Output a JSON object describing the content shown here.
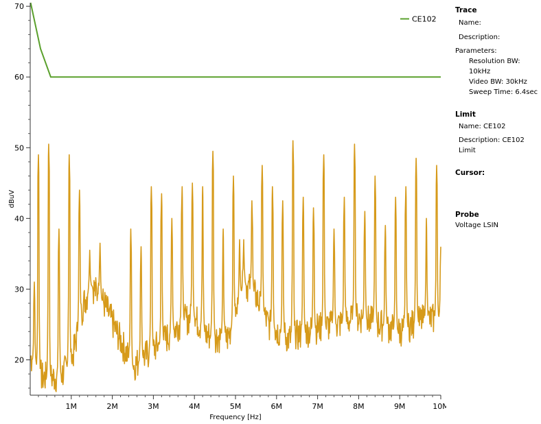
{
  "chart_data": {
    "type": "line",
    "xlabel": "Frequency [Hz]",
    "ylabel": "dBuV",
    "xlim": [
      0,
      10000000
    ],
    "ylim": [
      15,
      70.5
    ],
    "x_ticks": [
      {
        "value": 1000000,
        "label": "1M"
      },
      {
        "value": 2000000,
        "label": "2M"
      },
      {
        "value": 3000000,
        "label": "3M"
      },
      {
        "value": 4000000,
        "label": "4M"
      },
      {
        "value": 5000000,
        "label": "5M"
      },
      {
        "value": 6000000,
        "label": "6M"
      },
      {
        "value": 7000000,
        "label": "7M"
      },
      {
        "value": 8000000,
        "label": "8M"
      },
      {
        "value": 9000000,
        "label": "9M"
      },
      {
        "value": 10000000,
        "label": "10M"
      }
    ],
    "y_ticks": [
      {
        "value": 20,
        "label": "20"
      },
      {
        "value": 30,
        "label": "30"
      },
      {
        "value": 40,
        "label": "40"
      },
      {
        "value": 50,
        "label": "50"
      },
      {
        "value": 60,
        "label": "60"
      },
      {
        "value": 70,
        "label": "70"
      }
    ],
    "grid": false,
    "legend": {
      "placement": "top-right"
    },
    "series": [
      {
        "name": "CE102",
        "color": "#5aa02c",
        "style": "limit",
        "x": [
          10000,
          250000,
          500000,
          10000000
        ],
        "y": [
          70.5,
          64,
          60,
          60
        ]
      },
      {
        "name": "",
        "color": "#d69a1a",
        "style": "trace",
        "baseline": [
          [
            0,
            20.5
          ],
          [
            300000,
            17.5
          ],
          [
            700000,
            17.5
          ],
          [
            1000000,
            19.5
          ],
          [
            1300000,
            28
          ],
          [
            1500000,
            30.5
          ],
          [
            1800000,
            28
          ],
          [
            2100000,
            24
          ],
          [
            2500000,
            19
          ],
          [
            3000000,
            21.5
          ],
          [
            3400000,
            23.5
          ],
          [
            3700000,
            25.5
          ],
          [
            4000000,
            26
          ],
          [
            4300000,
            23.5
          ],
          [
            4800000,
            23
          ],
          [
            5000000,
            26
          ],
          [
            5200000,
            31
          ],
          [
            5500000,
            29
          ],
          [
            5800000,
            25
          ],
          [
            6300000,
            23
          ],
          [
            7000000,
            24.5
          ],
          [
            7500000,
            25
          ],
          [
            8000000,
            26
          ],
          [
            8500000,
            25
          ],
          [
            9000000,
            24
          ],
          [
            9500000,
            25.5
          ],
          [
            10000000,
            26
          ]
        ],
        "peaks": [
          [
            100000,
            31
          ],
          [
            200000,
            49
          ],
          [
            450000,
            50.5
          ],
          [
            700000,
            38.5
          ],
          [
            950000,
            49
          ],
          [
            1200000,
            44
          ],
          [
            1450000,
            35.5
          ],
          [
            1700000,
            36.5
          ],
          [
            2450000,
            38.5
          ],
          [
            2700000,
            36
          ],
          [
            2950000,
            44.5
          ],
          [
            3200000,
            43.5
          ],
          [
            3450000,
            40
          ],
          [
            3700000,
            44.5
          ],
          [
            3950000,
            45
          ],
          [
            4200000,
            44.5
          ],
          [
            4450000,
            49.5
          ],
          [
            4700000,
            38.5
          ],
          [
            4950000,
            46
          ],
          [
            5100000,
            37
          ],
          [
            5200000,
            37
          ],
          [
            5400000,
            42.5
          ],
          [
            5650000,
            47.5
          ],
          [
            5900000,
            44.5
          ],
          [
            6150000,
            42.5
          ],
          [
            6400000,
            51
          ],
          [
            6650000,
            43
          ],
          [
            6900000,
            41.5
          ],
          [
            7150000,
            49
          ],
          [
            7400000,
            38.5
          ],
          [
            7650000,
            43
          ],
          [
            7900000,
            50.5
          ],
          [
            8150000,
            41
          ],
          [
            8400000,
            46
          ],
          [
            8650000,
            39
          ],
          [
            8900000,
            43
          ],
          [
            9150000,
            44.5
          ],
          [
            9400000,
            48.5
          ],
          [
            9650000,
            40
          ],
          [
            9900000,
            47.5
          ],
          [
            10000000,
            36
          ]
        ]
      }
    ]
  },
  "legend_label": "CE102",
  "side_panel": {
    "trace_header": "Trace",
    "trace_name": "Name:",
    "trace_description": "Description:",
    "parameters_label": "Parameters:",
    "resolution_bw": "Resolution BW: 10kHz",
    "video_bw": "Video BW: 30kHz",
    "sweep_time": "Sweep Time: 6.4sec",
    "limit_header": "Limit",
    "limit_name": "Name: CE102",
    "limit_description": "Description: CE102 Limit",
    "cursor_header": "Cursor:",
    "probe_header": "Probe",
    "probe_value": "Voltage LSIN"
  }
}
